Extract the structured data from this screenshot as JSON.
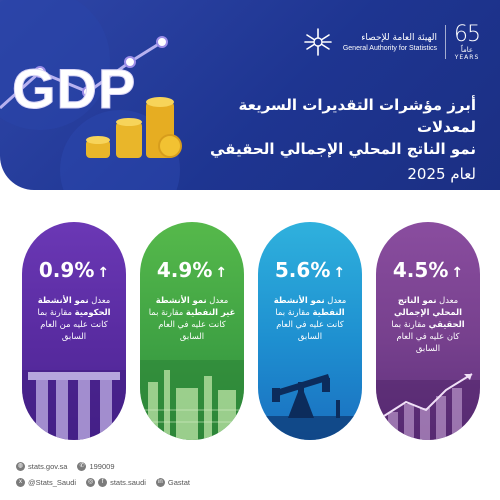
{
  "header": {
    "logo_years_number": "65",
    "logo_years_ar": "عاماً",
    "logo_years_en": "YEARS",
    "authority_ar": "الهيئة العامة للإحصاء",
    "authority_en": "General Authority for Statistics",
    "graphic_text": "GDP",
    "title_line1": "أبرز مؤشرات التقديرات السريعة لمعدلات",
    "title_line2": "نمو الناتج المحلي الإجمالي الحقيقي",
    "title_line3": "لعام 2025"
  },
  "cards": [
    {
      "id": "gdp",
      "value": "4.5%",
      "arrow": "↑",
      "desc_pre": "معدل ",
      "desc_bold": "نمو الناتج المحلي الإجمالي الحقيقي",
      "desc_post": " مقارنة بما كان عليه في العام السابق",
      "color": "#76408d"
    },
    {
      "id": "oil",
      "value": "5.6%",
      "arrow": "↑",
      "desc_pre": "معدل ",
      "desc_bold": "نمو الأنشطة النفطية",
      "desc_post": " مقارنة بما كانت عليه في العام السابق",
      "color": "#1e8fd0"
    },
    {
      "id": "nonoil",
      "value": "4.9%",
      "arrow": "↑",
      "desc_pre": "معدل ",
      "desc_bold": "نمو الأنشطة غير النفطية",
      "desc_post": " مقارنة بما كانت عليه في العام السابق",
      "color": "#3da043"
    },
    {
      "id": "govt",
      "value": "0.9%",
      "arrow": "↑",
      "desc_pre": "معدل ",
      "desc_bold": "نمو الأنشطة الحكومية",
      "desc_post": " مقارنة بما كانت عليه من العام السابق",
      "color": "#5a2ca2"
    }
  ],
  "footer": {
    "website": "stats.gov.sa",
    "phone": "199009",
    "twitter": "@Stats_Saudi",
    "social": "stats.saudi",
    "linkedin": "Gastat"
  },
  "icons": {
    "website": "globe-icon",
    "phone": "phone-icon",
    "twitter": "x-icon",
    "instagram": "instagram-icon",
    "facebook": "facebook-icon",
    "linkedin": "linkedin-icon"
  }
}
